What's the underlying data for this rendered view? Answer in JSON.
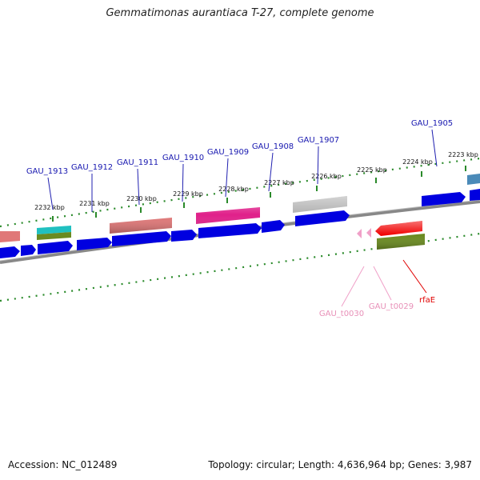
{
  "title": "Gemmatimonas aurantiaca T-27, complete genome",
  "footer": {
    "accession": "Accession: NC_012489",
    "summary": "Topology: circular; Length: 4,636,964 bp; Genes: 3,987"
  },
  "colors": {
    "cds": "#0000e0",
    "rrna_teal": "#20c0c0",
    "olive": "#6a8a20",
    "salmon": "#e07878",
    "magenta": "#e0208a",
    "grey": "#b0b0b0",
    "steelblue": "#4a8ab8",
    "red": "#f00000",
    "trna": "#f0a0c8",
    "tick": "#2a8a2a",
    "backbone": "#888888"
  },
  "ticks": [
    "2232 kbp",
    "2231 kbp",
    "2230 kbp",
    "2229 kbp",
    "2228 kbp",
    "2227 kbp",
    "2226 kbp",
    "2225 kbp",
    "2224 kbp",
    "2223 kbp"
  ],
  "upper_labels": [
    "GAU_1913",
    "GAU_1912",
    "GAU_1911",
    "GAU_1910",
    "GAU_1909",
    "GAU_1908",
    "GAU_1907",
    "GAU_1905"
  ],
  "lower_labels": [
    "GAU_t0030",
    "GAU_t0029",
    "rfaE"
  ]
}
